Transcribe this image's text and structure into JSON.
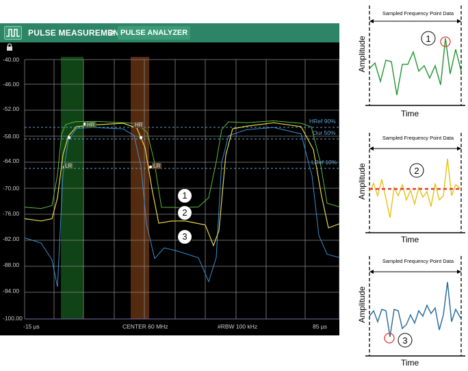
{
  "header": {
    "section": "PULSE MEASUREMENTS",
    "separator": ">",
    "active": "PULSE ANALYZER"
  },
  "plot": {
    "y_labels": [
      "-40.00",
      "-46.00",
      "-52.00",
      "-58.00",
      "-64.00",
      "-70.00",
      "-76.00",
      "-82.00",
      "-88.00",
      "-94.00",
      "-100.00"
    ],
    "x_start": "-15 µs",
    "center": "CENTER 60 MHz",
    "rbw": "#RBW 100 kHz",
    "x_end": "85 µs",
    "ref_labels": [
      "HRef 90%",
      "Our 50%",
      "LRef 10%"
    ],
    "markers": [
      "HR",
      "HR",
      "LR",
      "LR"
    ],
    "colors": {
      "trace1": "#5dbb3a",
      "trace2": "#e8d84a",
      "trace3": "#3a8fd0",
      "green_band": "#1e7a28",
      "orange_band": "#9a4e1e"
    }
  },
  "callouts": [
    "1",
    "2",
    "3"
  ],
  "panels": [
    {
      "title": "Sampled Frequency Point Data",
      "xlabel": "Time",
      "ylabel": "Amplitude",
      "number": "1",
      "color": "#2a9a3a"
    },
    {
      "title": "Sampled Frequency Point Data",
      "xlabel": "Time",
      "ylabel": "Amplitude",
      "number": "2",
      "color": "#e8c420"
    },
    {
      "title": "Sampled Frequency Point Data",
      "xlabel": "Time",
      "ylabel": "Amplitude",
      "number": "3",
      "color": "#2e6ea0"
    }
  ]
}
